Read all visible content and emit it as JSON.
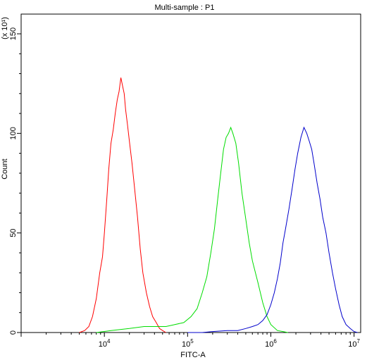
{
  "chart_data": {
    "type": "line",
    "title": "Multi-sample : P1",
    "xlabel": "FITC-A",
    "ylabel": "Count",
    "y_multiplier_label": "(x 10¹)",
    "x_scale": "log",
    "xlim": [
      1000,
      12000000
    ],
    "ylim": [
      0,
      150
    ],
    "x_ticks": [
      {
        "value": 10000,
        "base": "10",
        "exp": "4"
      },
      {
        "value": 100000,
        "base": "10",
        "exp": "5"
      },
      {
        "value": 1000000,
        "base": "10",
        "exp": "6"
      },
      {
        "value": 10000000,
        "base": "10",
        "exp": "7"
      }
    ],
    "y_ticks": [
      {
        "value": 0,
        "label": "0"
      },
      {
        "value": 50,
        "label": "50"
      },
      {
        "value": 100,
        "label": "100"
      },
      {
        "value": 150,
        "label": "150"
      }
    ],
    "grid": false,
    "series": [
      {
        "color": "#ff0000",
        "x": [
          5000,
          5800,
          6500,
          7200,
          8000,
          8800,
          9500,
          10000,
          10700,
          11300,
          12000,
          12800,
          13500,
          14300,
          15000,
          15800,
          16500,
          17300,
          18000,
          19000,
          20000,
          21500,
          23000,
          25000,
          27000,
          29000,
          32000,
          35000,
          38000,
          42000,
          46000,
          50000,
          55000
        ],
        "y": [
          0,
          1,
          3,
          8,
          17,
          30,
          38,
          50,
          67,
          82,
          95,
          102,
          110,
          117,
          121,
          128,
          124,
          120,
          112,
          104,
          96,
          85,
          73,
          58,
          42,
          30,
          20,
          13,
          8,
          5,
          2,
          1,
          0
        ]
      },
      {
        "color": "#00dd00",
        "x": [
          8000,
          12000,
          20000,
          30000,
          40000,
          55000,
          70000,
          90000,
          110000,
          130000,
          150000,
          170000,
          190000,
          210000,
          230000,
          250000,
          270000,
          290000,
          310000,
          330000,
          350000,
          380000,
          410000,
          450000,
          500000,
          550000,
          600000,
          700000,
          800000,
          900000,
          1000000,
          1200000,
          1400000,
          1600000
        ],
        "y": [
          0,
          1,
          2,
          3,
          3,
          3,
          4,
          5,
          8,
          12,
          20,
          28,
          40,
          52,
          67,
          80,
          92,
          98,
          100,
          103,
          100,
          95,
          85,
          70,
          57,
          45,
          36,
          25,
          15,
          8,
          4,
          1,
          0.5,
          0
        ]
      },
      {
        "color": "#0000cc",
        "x": [
          100000,
          150000,
          200000,
          300000,
          400000,
          500000,
          600000,
          700000,
          800000,
          900000,
          1000000,
          1100000,
          1200000,
          1300000,
          1400000,
          1500000,
          1650000,
          1800000,
          1950000,
          2100000,
          2300000,
          2500000,
          2700000,
          2900000,
          3100000,
          3300000,
          3600000,
          3900000,
          4200000,
          4600000,
          5000000,
          5500000,
          6000000,
          6600000,
          7200000,
          8000000,
          9000000,
          10000000,
          11000000
        ],
        "y": [
          0,
          0,
          0.5,
          1,
          1,
          2,
          3,
          4,
          6,
          9,
          14,
          20,
          27,
          35,
          45,
          52,
          62,
          72,
          82,
          90,
          98,
          103,
          100,
          96,
          92,
          85,
          75,
          67,
          58,
          50,
          40,
          30,
          22,
          14,
          8,
          4,
          2,
          0.5,
          0
        ]
      }
    ]
  }
}
